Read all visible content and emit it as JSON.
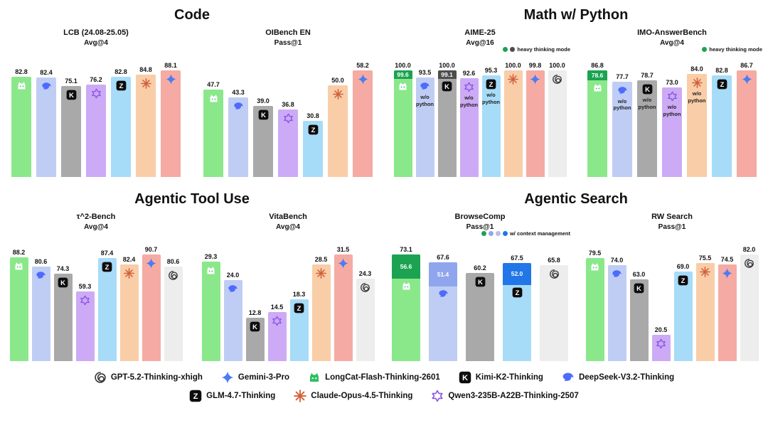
{
  "models": {
    "longcat": {
      "light": "#8ae88a",
      "dark": "#1ba351"
    },
    "deepseek": {
      "light": "#bfcdf5",
      "dark": "#8fa6ee"
    },
    "kimi": {
      "light": "#a9a9a9",
      "dark": "#4d4d4d"
    },
    "qwen": {
      "light": "#cdaaf5",
      "dark": "#9a6fe0"
    },
    "glm": {
      "light": "#a7dcf9",
      "dark": "#2176e8"
    },
    "claude": {
      "light": "#f9cda8",
      "dark": "#e08a4f"
    },
    "gemini": {
      "light": "#f5aba3",
      "dark": "#e07d72"
    },
    "gpt": {
      "light": "#ededed",
      "dark": "#9a9a9a"
    }
  },
  "sections": [
    {
      "title": "Code",
      "charts": [
        "lcb",
        "oibench"
      ]
    },
    {
      "title": "Math w/ Python",
      "charts": [
        "aime",
        "imo"
      ]
    },
    {
      "title": "Agentic Tool Use",
      "charts": [
        "tau2",
        "vitabench"
      ]
    },
    {
      "title": "Agentic Search",
      "charts": [
        "browsecomp",
        "rwsearch"
      ]
    }
  ],
  "chart_data": [
    {
      "id": "lcb",
      "type": "bar",
      "title": "LCB (24.08-25.05)",
      "subtitle": "Avg@4",
      "bars": [
        {
          "model": "longcat",
          "value": 82.8
        },
        {
          "model": "deepseek",
          "value": 82.4
        },
        {
          "model": "kimi",
          "value": 75.1
        },
        {
          "model": "qwen",
          "value": 76.2
        },
        {
          "model": "glm",
          "value": 82.8
        },
        {
          "model": "claude",
          "value": 84.8
        },
        {
          "model": "gemini",
          "value": 88.1
        }
      ]
    },
    {
      "id": "oibench",
      "type": "bar",
      "title": "OIBench EN",
      "subtitle": "Pass@1",
      "bars": [
        {
          "model": "longcat",
          "value": 47.7
        },
        {
          "model": "deepseek",
          "value": 43.3
        },
        {
          "model": "kimi",
          "value": 39.0
        },
        {
          "model": "qwen",
          "value": 36.8
        },
        {
          "model": "glm",
          "value": 30.8
        },
        {
          "model": "claude",
          "value": 50.0
        },
        {
          "model": "gemini",
          "value": 58.2
        }
      ]
    },
    {
      "id": "aime",
      "type": "bar",
      "title": "AIME-25",
      "subtitle": "Avg@16",
      "mini_legend": {
        "label": "heavy thinking mode",
        "dots": [
          "#1ba351",
          "#4d4d4d"
        ]
      },
      "bars": [
        {
          "model": "longcat",
          "value": 99.6,
          "heavy": 100.0
        },
        {
          "model": "deepseek",
          "value": 93.5,
          "note": "w/o python"
        },
        {
          "model": "kimi",
          "value": 99.1,
          "heavy": 100.0
        },
        {
          "model": "qwen",
          "value": 92.6,
          "note": "w/o python"
        },
        {
          "model": "glm",
          "value": 95.3,
          "note": "w/o python"
        },
        {
          "model": "claude",
          "value": 100.0
        },
        {
          "model": "gemini",
          "value": 99.8
        },
        {
          "model": "gpt",
          "value": 100.0
        }
      ]
    },
    {
      "id": "imo",
      "type": "bar",
      "title": "IMO-AnswerBench",
      "subtitle": "Avg@4",
      "mini_legend": {
        "label": "heavy thinking mode",
        "dots": [
          "#1ba351"
        ]
      },
      "bars": [
        {
          "model": "longcat",
          "value": 78.6,
          "heavy": 86.8
        },
        {
          "model": "deepseek",
          "value": 77.7,
          "note": "w/o python"
        },
        {
          "model": "kimi",
          "value": 78.7,
          "note": "w/o python"
        },
        {
          "model": "qwen",
          "value": 73.0,
          "note": "w/o python"
        },
        {
          "model": "claude",
          "value": 84.0,
          "note": "w/o python"
        },
        {
          "model": "glm",
          "value": 82.8
        },
        {
          "model": "gemini",
          "value": 86.7
        }
      ]
    },
    {
      "id": "tau2",
      "type": "bar",
      "title": "τ^2-Bench",
      "subtitle": "Avg@4",
      "bars": [
        {
          "model": "longcat",
          "value": 88.2
        },
        {
          "model": "deepseek",
          "value": 80.6
        },
        {
          "model": "kimi",
          "value": 74.3
        },
        {
          "model": "qwen",
          "value": 59.3
        },
        {
          "model": "glm",
          "value": 87.4
        },
        {
          "model": "claude",
          "value": 82.4
        },
        {
          "model": "gemini",
          "value": 90.7
        },
        {
          "model": "gpt",
          "value": 80.6
        }
      ]
    },
    {
      "id": "vitabench",
      "type": "bar",
      "title": "VitaBench",
      "subtitle": "Avg@4",
      "bars": [
        {
          "model": "longcat",
          "value": 29.3
        },
        {
          "model": "deepseek",
          "value": 24.0
        },
        {
          "model": "kimi",
          "value": 12.8
        },
        {
          "model": "qwen",
          "value": 14.5
        },
        {
          "model": "glm",
          "value": 18.3
        },
        {
          "model": "claude",
          "value": 28.5
        },
        {
          "model": "gemini",
          "value": 31.5
        },
        {
          "model": "gpt",
          "value": 24.3
        }
      ]
    },
    {
      "id": "browsecomp",
      "type": "bar",
      "title": "BrowseComp",
      "subtitle": "Pass@1",
      "mini_legend": {
        "label": "w/ context management",
        "dots": [
          "#1ba351",
          "#8fa6ee",
          "#bdbddc",
          "#2176e8"
        ]
      },
      "bars": [
        {
          "model": "longcat",
          "value": 56.6,
          "heavy": 73.1
        },
        {
          "model": "deepseek",
          "value": 51.4,
          "heavy": 67.6
        },
        {
          "model": "kimi",
          "value": 60.2
        },
        {
          "model": "glm",
          "value": 52.0,
          "heavy": 67.5
        },
        {
          "model": "gpt",
          "value": 65.8
        }
      ]
    },
    {
      "id": "rwsearch",
      "type": "bar",
      "title": "RW Search",
      "subtitle": "Pass@1",
      "bars": [
        {
          "model": "longcat",
          "value": 79.5
        },
        {
          "model": "deepseek",
          "value": 74.0
        },
        {
          "model": "kimi",
          "value": 63.0
        },
        {
          "model": "qwen",
          "value": 20.5
        },
        {
          "model": "glm",
          "value": 69.0
        },
        {
          "model": "claude",
          "value": 75.5
        },
        {
          "model": "gemini",
          "value": 74.5
        },
        {
          "model": "gpt",
          "value": 82.0
        }
      ]
    }
  ],
  "legend": {
    "rows": [
      [
        {
          "model": "gpt",
          "label": "GPT-5.2-Thinking-xhigh"
        },
        {
          "model": "gemini",
          "label": "Gemini-3-Pro"
        },
        {
          "model": "longcat",
          "label": "LongCat-Flash-Thinking-2601"
        },
        {
          "model": "kimi",
          "label": "Kimi-K2-Thinking"
        },
        {
          "model": "deepseek",
          "label": "DeepSeek-V3.2-Thinking"
        }
      ],
      [
        {
          "model": "glm",
          "label": "GLM-4.7-Thinking"
        },
        {
          "model": "claude",
          "label": "Claude-Opus-4.5-Thinking"
        },
        {
          "model": "qwen",
          "label": "Qwen3-235B-A22B-Thinking-2507"
        }
      ]
    ]
  }
}
